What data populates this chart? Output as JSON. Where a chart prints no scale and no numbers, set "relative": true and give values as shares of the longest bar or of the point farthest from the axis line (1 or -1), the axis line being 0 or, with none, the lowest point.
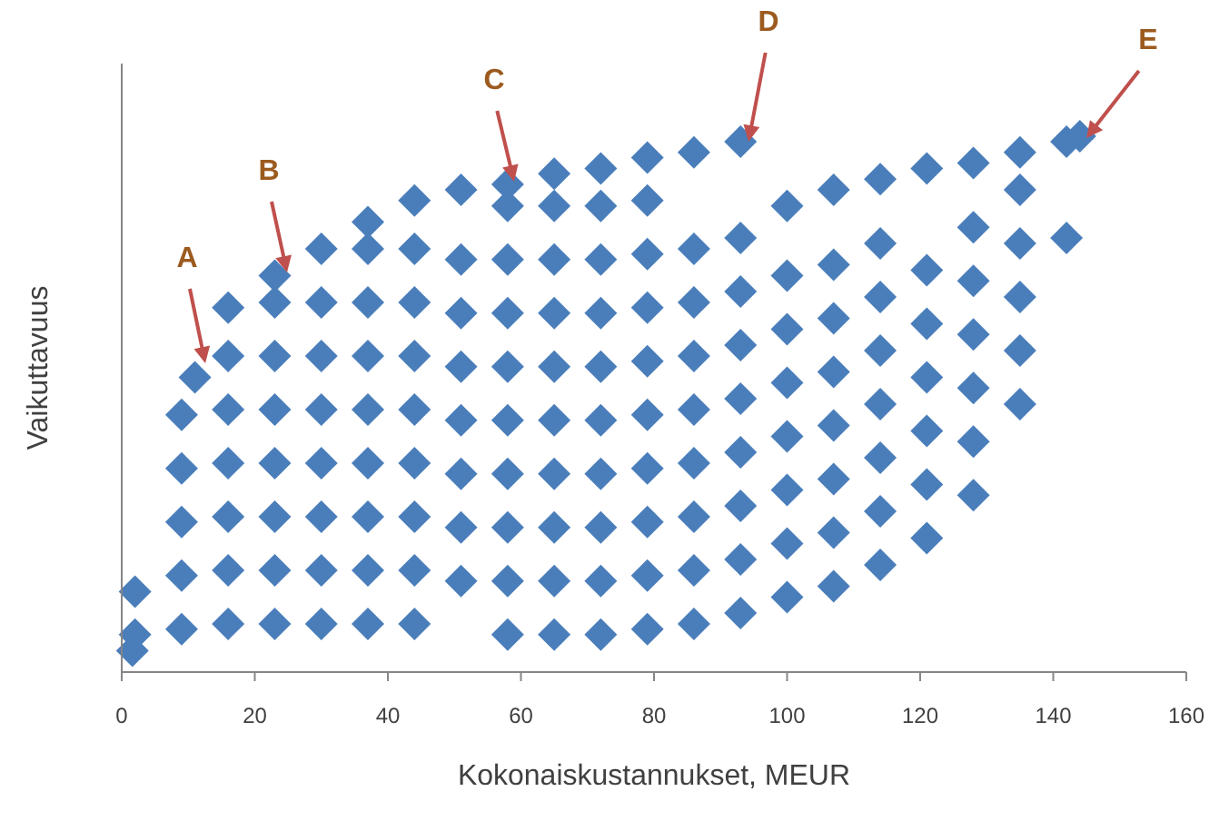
{
  "chart_data": {
    "type": "scatter",
    "relative": true,
    "xlabel": "Kokonaiskustannukset, MEUR",
    "ylabel": "Vaikuttavuus",
    "xlim": [
      0,
      160
    ],
    "xticks": [
      0,
      20,
      40,
      60,
      80,
      100,
      120,
      140,
      160
    ],
    "marker": "diamond",
    "series": [
      {
        "color": "#4a7ebb",
        "x": [
          1.6,
          2,
          2,
          9,
          9,
          9,
          9,
          9,
          16,
          16,
          16,
          16,
          16,
          16,
          16,
          23,
          23,
          23,
          23,
          23,
          23,
          23,
          23,
          30,
          30,
          30,
          30,
          30,
          30,
          30,
          30,
          37,
          37,
          37,
          37,
          37,
          37,
          37,
          37,
          37,
          44,
          44,
          44,
          44,
          44,
          44,
          44,
          44,
          44,
          51,
          51,
          51,
          51,
          51,
          51,
          51,
          51,
          58,
          58,
          58,
          58,
          58,
          58,
          58,
          58,
          58,
          58,
          65,
          65,
          65,
          65,
          65,
          65,
          65,
          65,
          65,
          65,
          72,
          72,
          72,
          72,
          72,
          72,
          72,
          72,
          72,
          72,
          79,
          79,
          79,
          79,
          79,
          79,
          79,
          79,
          79,
          79,
          86,
          86,
          86,
          86,
          86,
          86,
          86,
          86,
          86,
          93,
          93,
          93,
          93,
          93,
          93,
          93,
          93,
          93,
          100,
          100,
          100,
          100,
          100,
          100,
          100,
          100,
          107,
          107,
          107,
          107,
          107,
          107,
          107,
          107,
          114,
          114,
          114,
          114,
          114,
          114,
          114,
          114,
          121,
          121,
          121,
          121,
          121,
          121,
          121,
          128,
          128,
          128,
          128,
          128,
          128,
          128,
          135,
          135,
          135,
          135,
          135,
          135,
          142,
          142,
          144,
          11
        ],
        "values": [
          0.04,
          0.07,
          0.15,
          0.08,
          0.18,
          0.28,
          0.38,
          0.48,
          0.09,
          0.19,
          0.29,
          0.39,
          0.49,
          0.59,
          0.68,
          0.09,
          0.19,
          0.29,
          0.39,
          0.49,
          0.59,
          0.69,
          0.74,
          0.09,
          0.19,
          0.29,
          0.39,
          0.49,
          0.59,
          0.69,
          0.79,
          0.09,
          0.19,
          0.29,
          0.39,
          0.49,
          0.59,
          0.69,
          0.79,
          0.84,
          0.09,
          0.19,
          0.29,
          0.39,
          0.49,
          0.59,
          0.69,
          0.79,
          0.88,
          0.17,
          0.27,
          0.37,
          0.47,
          0.57,
          0.67,
          0.77,
          0.9,
          0.07,
          0.17,
          0.27,
          0.37,
          0.47,
          0.57,
          0.67,
          0.77,
          0.87,
          0.91,
          0.07,
          0.17,
          0.27,
          0.37,
          0.47,
          0.57,
          0.67,
          0.77,
          0.87,
          0.93,
          0.07,
          0.17,
          0.27,
          0.37,
          0.47,
          0.57,
          0.67,
          0.77,
          0.87,
          0.94,
          0.08,
          0.18,
          0.28,
          0.38,
          0.48,
          0.58,
          0.68,
          0.78,
          0.88,
          0.96,
          0.09,
          0.19,
          0.29,
          0.39,
          0.49,
          0.59,
          0.69,
          0.79,
          0.97,
          0.11,
          0.21,
          0.31,
          0.41,
          0.51,
          0.61,
          0.71,
          0.81,
          0.99,
          0.14,
          0.24,
          0.34,
          0.44,
          0.54,
          0.64,
          0.74,
          0.87,
          0.16,
          0.26,
          0.36,
          0.46,
          0.56,
          0.66,
          0.76,
          0.9,
          0.2,
          0.3,
          0.4,
          0.5,
          0.6,
          0.7,
          0.8,
          0.92,
          0.25,
          0.35,
          0.45,
          0.55,
          0.65,
          0.75,
          0.94,
          0.33,
          0.43,
          0.53,
          0.63,
          0.73,
          0.83,
          0.95,
          0.5,
          0.6,
          0.7,
          0.8,
          0.9,
          0.97,
          0.81,
          0.99,
          1.0,
          0.55
        ]
      }
    ],
    "annotations": [
      "A",
      "B",
      "C",
      "D",
      "E"
    ]
  }
}
